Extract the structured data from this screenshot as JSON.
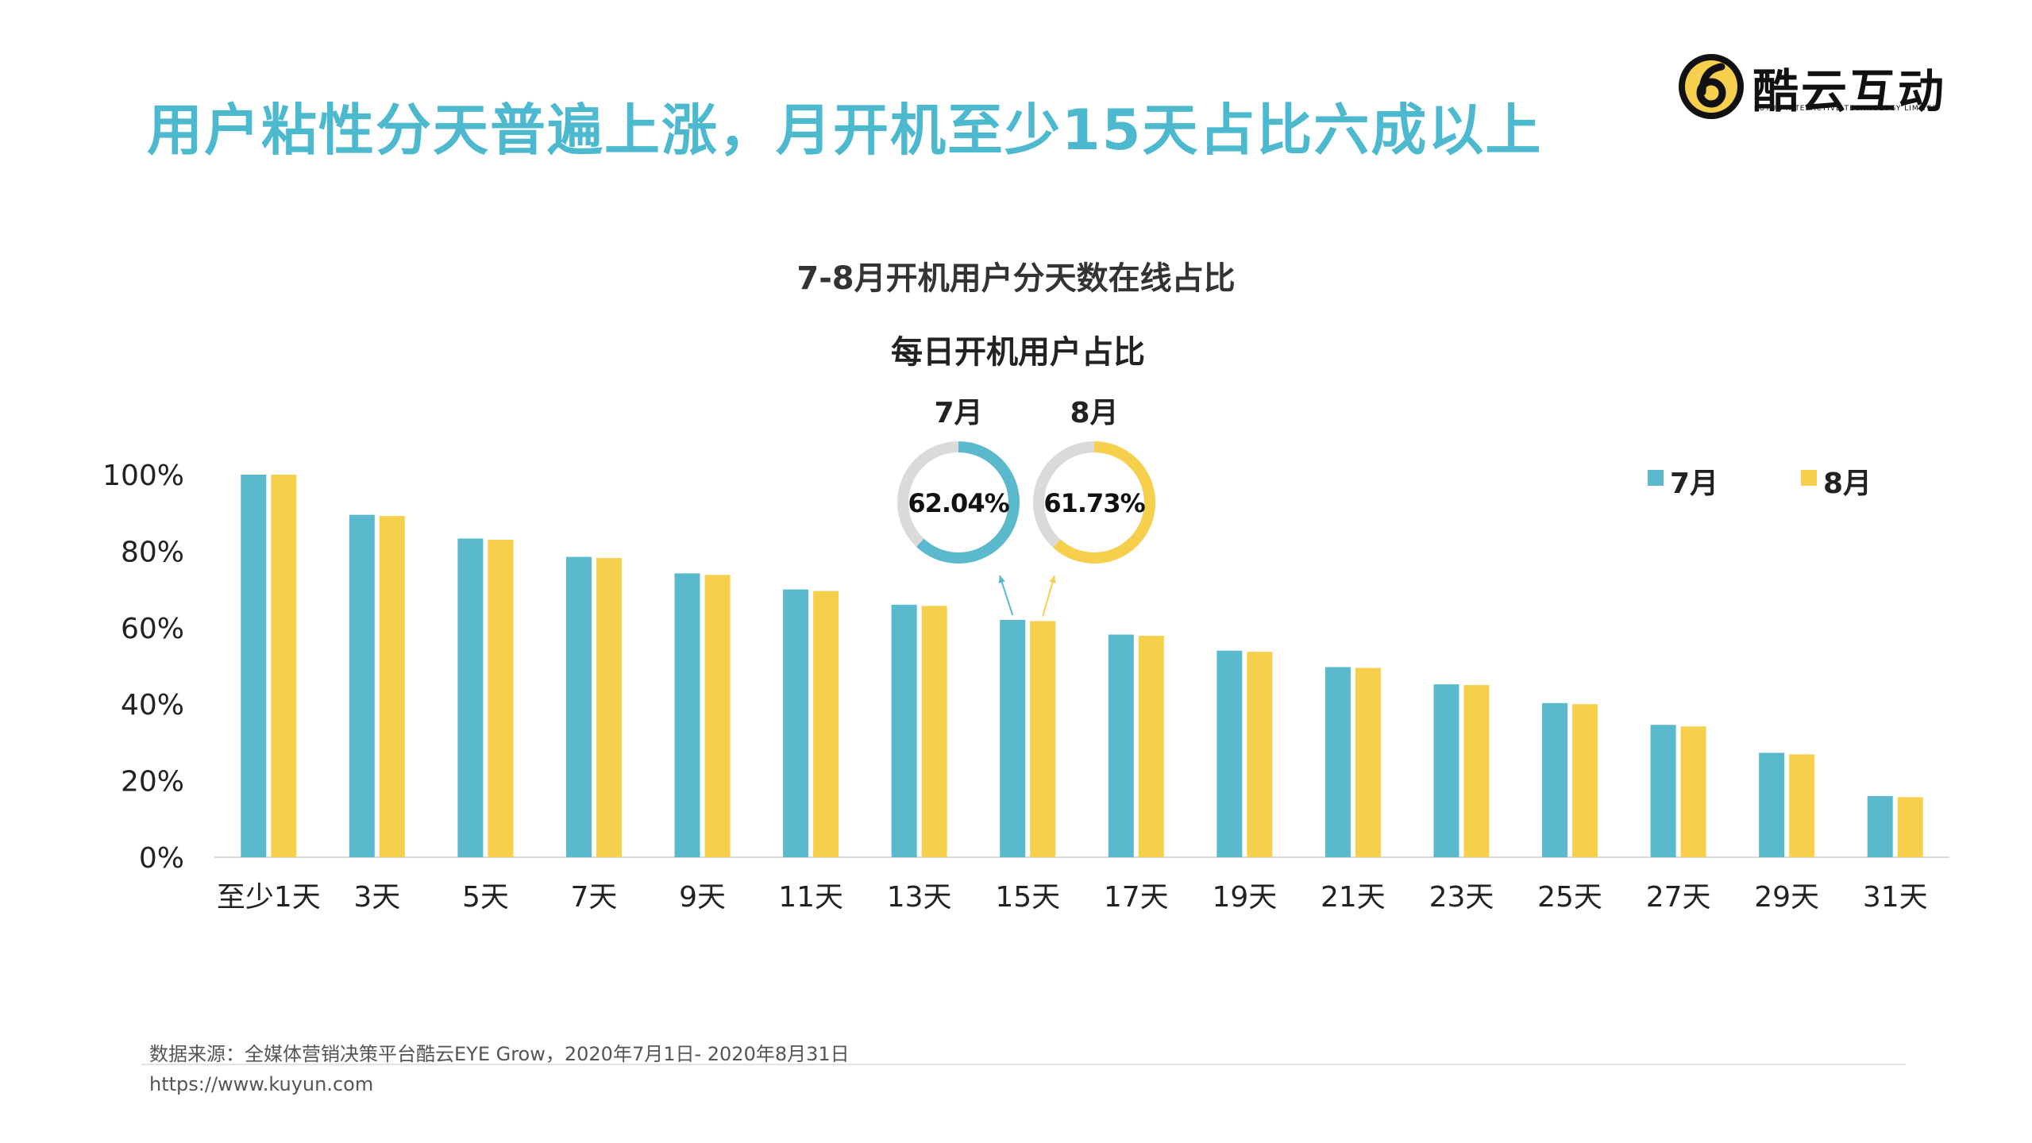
{
  "header": {
    "headline": "用户粘性分天普遍上涨，月开机至少15天占比六成以上"
  },
  "logo": {
    "name": "酷云互动",
    "tagline": "KUYUN INTERACTIVE TECHNOLOGY LIMITED",
    "icon": "kuyun-logo-icon"
  },
  "colors": {
    "july": "#5ab9cc",
    "august": "#f6d04d",
    "headline": "#4cb9cf",
    "ring_track": "#dadada"
  },
  "chart_data": {
    "type": "bar",
    "title": "7-8月开机用户分天数在线占比",
    "categories": [
      "至少1天",
      "3天",
      "5天",
      "7天",
      "9天",
      "11天",
      "13天",
      "15天",
      "17天",
      "19天",
      "21天",
      "23天",
      "25天",
      "27天",
      "29天",
      "31天"
    ],
    "series": [
      {
        "name": "7月",
        "values": [
          100,
          89.5,
          83.3,
          78.5,
          74.2,
          70.0,
          66.0,
          62.04,
          58.2,
          54.0,
          49.7,
          45.2,
          40.3,
          34.6,
          27.3,
          16.0
        ]
      },
      {
        "name": "8月",
        "values": [
          100,
          89.2,
          83.0,
          78.2,
          73.8,
          69.6,
          65.7,
          61.73,
          57.9,
          53.7,
          49.5,
          45.0,
          40.0,
          34.2,
          26.9,
          15.7
        ]
      }
    ],
    "y_ticks": [
      "0%",
      "20%",
      "40%",
      "60%",
      "80%",
      "100%"
    ],
    "ylim": [
      0,
      100
    ],
    "xlabel": "",
    "ylabel": "",
    "legend": "top-right",
    "inset": {
      "title": "每日开机用户占比",
      "rings": [
        {
          "month": "7月",
          "value": 62.04,
          "label": "62.04%"
        },
        {
          "month": "8月",
          "value": 61.73,
          "label": "61.73%"
        }
      ]
    }
  },
  "footer": {
    "source": "数据来源：全媒体营销决策平台酷云EYE Grow，2020年7月1日- 2020年8月31日",
    "url": "https://www.kuyun.com"
  }
}
